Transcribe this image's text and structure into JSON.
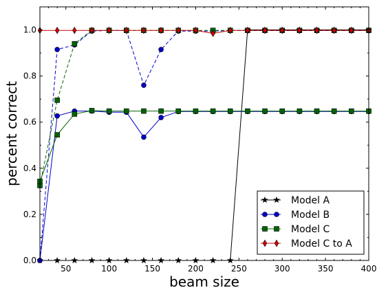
{
  "chart_data": {
    "type": "line",
    "title": "",
    "xlabel": "beam size",
    "ylabel": "percent correct",
    "xlim": [
      20,
      400
    ],
    "ylim": [
      0.0,
      1.1
    ],
    "xticks": [
      50,
      100,
      150,
      200,
      250,
      300,
      350,
      400
    ],
    "yticks": [
      0.0,
      0.2,
      0.4,
      0.6,
      0.8,
      1.0
    ],
    "grid": false,
    "legend_position": "lower-right",
    "x": [
      20,
      40,
      60,
      80,
      100,
      120,
      140,
      160,
      180,
      200,
      220,
      240,
      260,
      280,
      300,
      320,
      340,
      360,
      380,
      400
    ],
    "series": [
      {
        "name": "Model A",
        "color": "#000000",
        "marker": "star",
        "line_style": "solid",
        "values": [
          0.0,
          0.0,
          0.0,
          0.0,
          0.0,
          0.0,
          0.0,
          0.0,
          0.0,
          0.0,
          0.0,
          0.0,
          1.0,
          1.0,
          1.0,
          1.0,
          1.0,
          1.0,
          1.0,
          1.0
        ]
      },
      {
        "name": "Model B",
        "color": "#0000cc",
        "marker": "circle",
        "line_style": "solid",
        "values": [
          0.0,
          0.627,
          0.648,
          0.648,
          0.643,
          0.643,
          0.535,
          0.62,
          0.646,
          0.646,
          0.646,
          0.646,
          0.646,
          0.646,
          0.646,
          0.646,
          0.646,
          0.646,
          0.646,
          0.646
        ]
      },
      {
        "name": "Model C",
        "color": "#006400",
        "marker": "square",
        "line_style": "solid",
        "values": [
          0.343,
          0.545,
          0.635,
          0.65,
          0.648,
          0.648,
          0.648,
          0.648,
          0.648,
          0.648,
          0.648,
          0.648,
          0.648,
          0.648,
          0.648,
          0.648,
          0.648,
          0.648,
          0.648,
          0.648
        ]
      },
      {
        "name": "",
        "color": "#0000cc",
        "marker": "circle",
        "line_style": "dashed",
        "values": [
          0.0,
          0.915,
          0.935,
          0.995,
          0.998,
          0.997,
          0.76,
          0.915,
          0.995,
          0.995,
          0.995,
          0.997,
          0.997,
          0.997,
          0.997,
          0.997,
          0.997,
          0.997,
          0.997,
          0.997
        ]
      },
      {
        "name": "",
        "color": "#006400",
        "marker": "square",
        "line_style": "dashed",
        "values": [
          0.325,
          0.695,
          0.94,
          0.998,
          0.998,
          0.998,
          0.998,
          0.998,
          0.998,
          0.998,
          0.998,
          0.998,
          0.998,
          0.998,
          0.998,
          0.998,
          0.998,
          0.998,
          0.998,
          0.998
        ]
      },
      {
        "name": "Model C to A",
        "color": "#cc0000",
        "marker": "diamond",
        "line_style": "solid",
        "values": [
          0.998,
          0.998,
          0.998,
          0.998,
          0.998,
          0.998,
          0.998,
          0.998,
          0.998,
          0.998,
          0.985,
          0.998,
          0.998,
          0.998,
          0.998,
          0.998,
          0.998,
          0.998,
          0.998,
          0.998
        ]
      }
    ]
  }
}
